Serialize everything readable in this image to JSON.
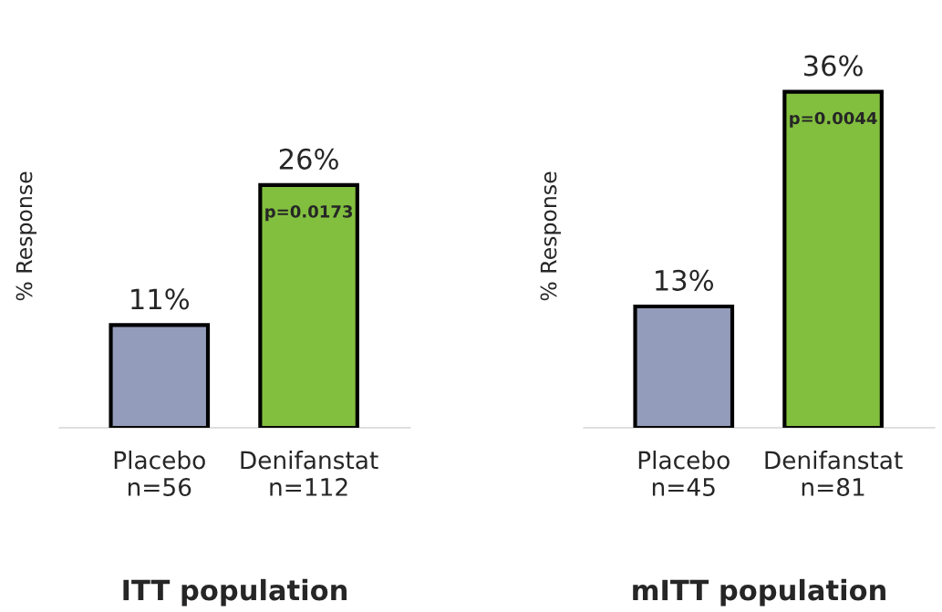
{
  "chart_data": [
    {
      "type": "bar",
      "title": "ITT population",
      "ylabel": "% Response",
      "categories": [
        "Placebo\nn=56",
        "Denifanstat\nn=112"
      ],
      "values": [
        11,
        26
      ],
      "colors": [
        "#949cbb",
        "#82bf3f"
      ],
      "value_labels": [
        "11%",
        "26%"
      ],
      "annotations": [
        {
          "text": "p=0.0173",
          "x": "Denifanstat\nn=112",
          "y": 26
        }
      ],
      "grid": false,
      "legend": false
    },
    {
      "type": "bar",
      "title": "mITT population",
      "ylabel": "% Response",
      "categories": [
        "Placebo\nn=45",
        "Denifanstat\nn=81"
      ],
      "values": [
        13,
        36
      ],
      "colors": [
        "#949cbb",
        "#82bf3f"
      ],
      "value_labels": [
        "13%",
        "36%"
      ],
      "annotations": [
        {
          "text": "p=0.0044",
          "x": "Denifanstat\nn=81",
          "y": 36
        }
      ],
      "grid": false,
      "legend": false
    }
  ]
}
